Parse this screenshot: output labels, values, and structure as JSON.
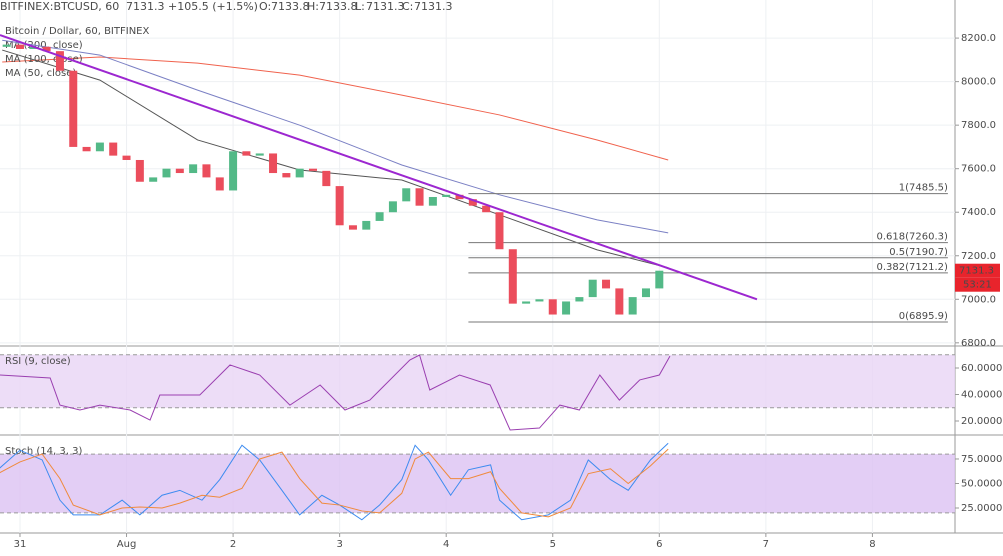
{
  "header": {
    "symbol": "BITFINEX:BTCUSD, 60",
    "last": "7131.3",
    "change": "+105.5 (+1.5%)",
    "ohlc": [
      {
        "key": "O:",
        "value": "7133.8"
      },
      {
        "key": "H:",
        "value": "7133.8"
      },
      {
        "key": "L:",
        "value": "7131.3"
      },
      {
        "key": "C:",
        "value": "7131.3"
      }
    ]
  },
  "chart_data": [
    {
      "type": "candlestick",
      "title": "Bitcoin / Dollar, 60, BITFINEX",
      "up_color": "#53b987",
      "down_color": "#eb4d5c",
      "x": [
        -3,
        0,
        3,
        6,
        9,
        12,
        15,
        18,
        21,
        24,
        27,
        30,
        33,
        36,
        39,
        42,
        45,
        48,
        51,
        54,
        57,
        60,
        63,
        66,
        69,
        72,
        75,
        78,
        81,
        84,
        87,
        90,
        93,
        96,
        99,
        102,
        105,
        108,
        111,
        114,
        117,
        120,
        123,
        126,
        129,
        132,
        135,
        138,
        141,
        144
      ],
      "open": [
        8160,
        8170,
        8150,
        8160,
        8140,
        8050,
        7700,
        7680,
        7720,
        7660,
        7640,
        7540,
        7560,
        7600,
        7580,
        7620,
        7560,
        7500,
        7680,
        7660,
        7670,
        7580,
        7560,
        7600,
        7590,
        7520,
        7340,
        7320,
        7360,
        7400,
        7450,
        7510,
        7430,
        7470,
        7480,
        7460,
        7430,
        7400,
        7230,
        6980,
        6990,
        7000,
        6930,
        6990,
        7010,
        7090,
        7050,
        6930,
        7010,
        7050
      ],
      "close": [
        8170,
        8150,
        8160,
        8140,
        8050,
        7700,
        7680,
        7720,
        7660,
        7640,
        7540,
        7560,
        7600,
        7580,
        7620,
        7560,
        7500,
        7680,
        7660,
        7670,
        7580,
        7560,
        7600,
        7590,
        7520,
        7340,
        7320,
        7360,
        7400,
        7450,
        7510,
        7430,
        7470,
        7480,
        7460,
        7430,
        7400,
        7230,
        6980,
        6990,
        7000,
        6930,
        6990,
        7010,
        7090,
        7050,
        6930,
        7010,
        7050,
        7131.3
      ],
      "series": [
        {
          "name": "MA (200, close)",
          "color": "#f0624d",
          "x": [
            -4,
            18,
            40,
            63,
            86,
            108,
            130,
            146
          ],
          "values": [
            8090,
            8113,
            8085,
            8030,
            7938,
            7847,
            7732,
            7640
          ]
        },
        {
          "name": "MA (100, close)",
          "color": "#7b80c4",
          "x": [
            -4,
            18,
            40,
            63,
            86,
            108,
            130,
            146
          ],
          "values": [
            8190,
            8122,
            7961,
            7800,
            7617,
            7480,
            7365,
            7305
          ]
        },
        {
          "name": "MA (50, close)",
          "color": "#555555",
          "x": [
            -4,
            18,
            40,
            63,
            86,
            108,
            130,
            146
          ],
          "values": [
            8145,
            8007,
            7732,
            7594,
            7548,
            7388,
            7227,
            7145
          ]
        }
      ],
      "trendline": {
        "color": "#9c27d0",
        "x": [
          -4.5,
          166
        ],
        "values": [
          8214,
          7000
        ]
      },
      "fib_x": [
        101,
        209
      ],
      "fib_levels": [
        {
          "value": 7485.5,
          "label": "1(7485.5)"
        },
        {
          "value": 7260.3,
          "label": "0.618(7260.3)"
        },
        {
          "value": 7190.7,
          "label": "0.5(7190.7)"
        },
        {
          "value": 7121.2,
          "label": "0.382(7121.2)"
        },
        {
          "value": 6895.9,
          "label": "0(6895.9)"
        }
      ],
      "price_tag": {
        "value": 7131.3,
        "label": "7131.3"
      },
      "countdown": "53:21",
      "xlim": [
        -4.5,
        210.6
      ],
      "xticks": [
        {
          "value": 0,
          "label": "31"
        },
        {
          "value": 24,
          "label": "Aug"
        },
        {
          "value": 48,
          "label": "2"
        },
        {
          "value": 72,
          "label": "3"
        },
        {
          "value": 96,
          "label": "4"
        },
        {
          "value": 120,
          "label": "5"
        },
        {
          "value": 144,
          "label": "6"
        },
        {
          "value": 168,
          "label": "7"
        },
        {
          "value": 192,
          "label": "8"
        }
      ],
      "ylim": [
        6790,
        8375
      ],
      "yticks": [
        {
          "value": 6800,
          "label": "6800.0"
        },
        {
          "value": 7000,
          "label": "7000.0"
        },
        {
          "value": 7200,
          "label": "7200.0"
        },
        {
          "value": 7400,
          "label": "7400.0"
        },
        {
          "value": 7600,
          "label": "7600.0"
        },
        {
          "value": 7800,
          "label": "7800.0"
        },
        {
          "value": 8000,
          "label": "8000.0"
        },
        {
          "value": 8200,
          "label": "8200.0"
        }
      ],
      "grid": true
    },
    {
      "type": "line",
      "title": "RSI (9, close)",
      "band": [
        30,
        70
      ],
      "band_color": "#e9d5f5",
      "series": [
        {
          "color": "#9a3fb0",
          "x": [
            -4.5,
            6.8,
            9,
            13.5,
            18,
            24.8,
            29.3,
            31.5,
            40.5,
            47.3,
            54,
            60.8,
            67.6,
            73.2,
            78.8,
            87.8,
            90,
            92.3,
            99,
            105.9,
            110.4,
            117,
            121.6,
            126,
            130.6,
            135,
            139.6,
            144,
            146.4
          ],
          "values": [
            54.7,
            52.5,
            32,
            28.3,
            32,
            28.3,
            20.7,
            39.6,
            39.6,
            62.3,
            54.7,
            32,
            47.2,
            28.3,
            35.8,
            66,
            69.8,
            43.4,
            54.7,
            47.2,
            13.2,
            14.7,
            32,
            28.3,
            54.7,
            35.8,
            51,
            54.7,
            69
          ]
        }
      ],
      "xlim": [
        -4.5,
        210.6
      ],
      "ylim": [
        11.7,
        75.1
      ],
      "yticks": [
        {
          "value": 20,
          "label": "20.0000"
        },
        {
          "value": 40,
          "label": "40.0000"
        },
        {
          "value": 60,
          "label": "60.0000"
        }
      ]
    },
    {
      "type": "line",
      "title": "Stoch (14, 3, 3)",
      "band": [
        20,
        80
      ],
      "band_color": "#dcc2f3",
      "series": [
        {
          "color": "#3d8bf0",
          "x": [
            -5,
            0,
            5,
            9,
            12,
            18,
            23,
            27,
            32,
            36,
            41,
            45,
            50,
            54,
            59,
            63,
            68,
            72,
            77,
            81,
            86,
            89,
            92,
            97,
            101,
            106,
            108,
            113,
            119,
            124,
            128,
            133,
            137,
            142,
            146
          ],
          "values": [
            64,
            84,
            74,
            33,
            18,
            18,
            33,
            18,
            38,
            43,
            33,
            54,
            89,
            74,
            43,
            18,
            38,
            28,
            13,
            28,
            54,
            89,
            74,
            38,
            64,
            69,
            33,
            13,
            18,
            33,
            74,
            54,
            43,
            74,
            91
          ]
        },
        {
          "color": "#f08a3c",
          "x": [
            -5,
            0,
            5,
            9,
            12,
            18,
            23,
            27,
            32,
            36,
            41,
            45,
            50,
            54,
            59,
            63,
            68,
            72,
            77,
            81,
            86,
            89,
            92,
            97,
            101,
            106,
            108,
            113,
            119,
            124,
            128,
            133,
            137,
            142,
            146
          ],
          "values": [
            60,
            72,
            80,
            55,
            28,
            18,
            25,
            26,
            25,
            30,
            38,
            36,
            45,
            75,
            82,
            55,
            30,
            28,
            22,
            20,
            40,
            75,
            82,
            55,
            55,
            62,
            45,
            20,
            16,
            25,
            60,
            65,
            50,
            68,
            85
          ]
        }
      ],
      "xlim": [
        -4.5,
        210.6
      ],
      "ylim": [
        -0.5,
        96.4
      ],
      "yticks": [
        {
          "value": 25,
          "label": "25.0000"
        },
        {
          "value": 50,
          "label": "50.0000"
        },
        {
          "value": 75,
          "label": "75.0000"
        }
      ]
    }
  ]
}
